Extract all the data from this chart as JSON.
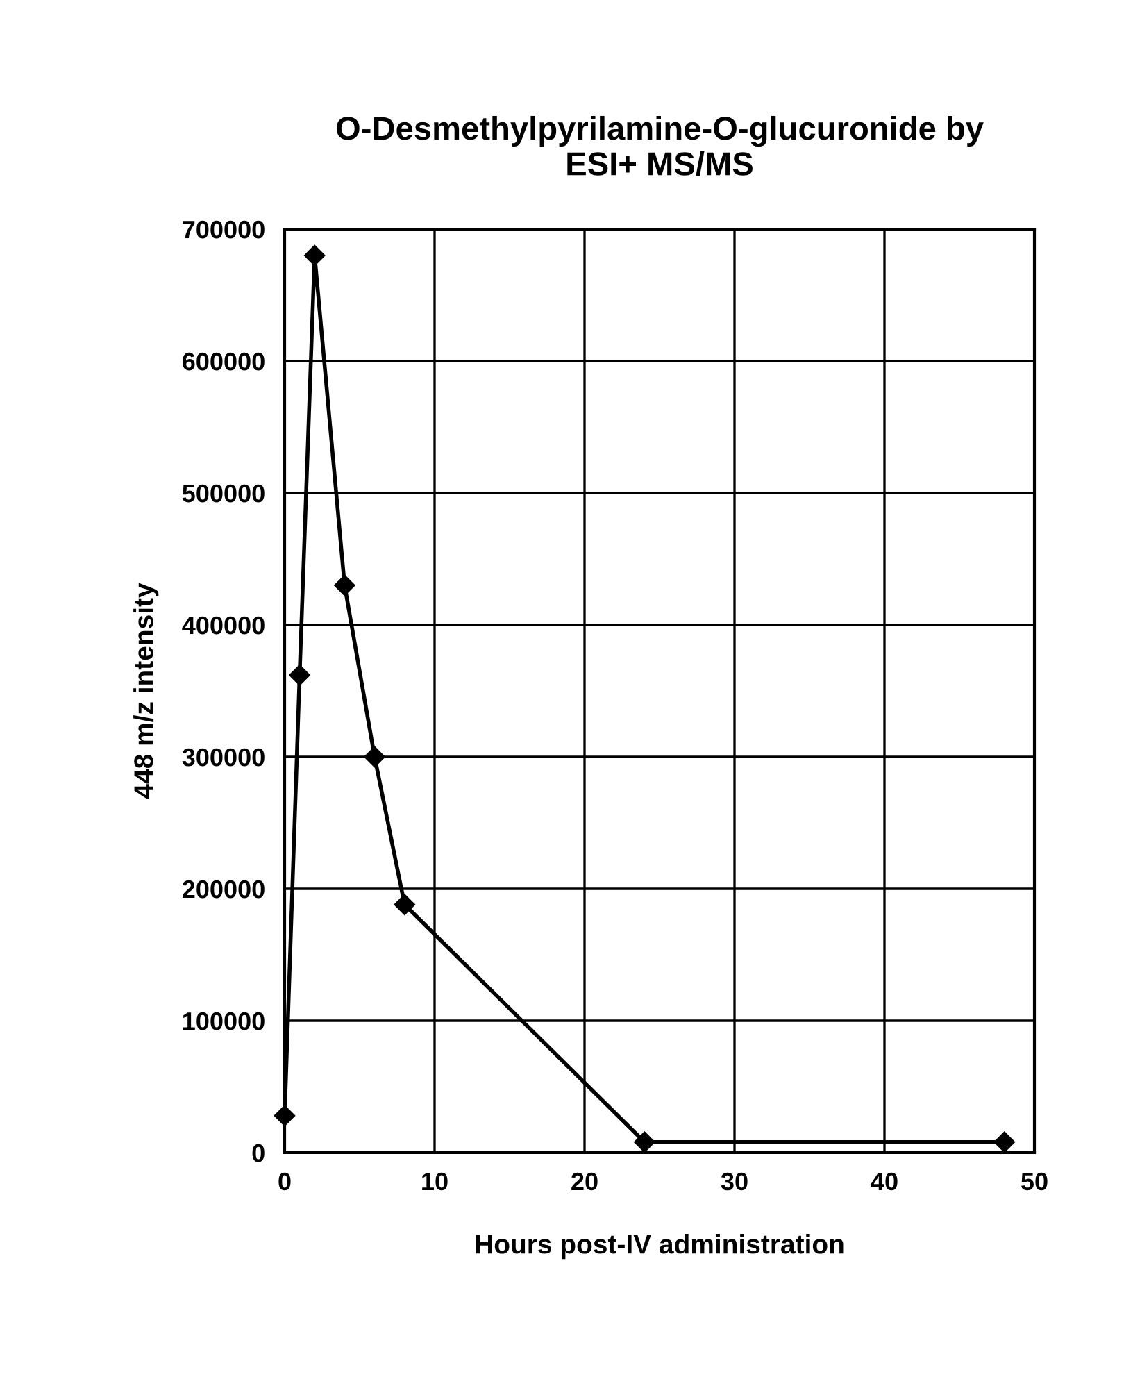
{
  "chart_data": {
    "type": "line",
    "title": "O-Desmethylpyrilamine-O-glucuronide by\nESI+ MS/MS",
    "xlabel": "Hours post-IV administration",
    "ylabel": "448 m/z intensity",
    "x": [
      0,
      1,
      2,
      4,
      6,
      8,
      24,
      48
    ],
    "series": [
      {
        "color": "#000000",
        "values": [
          28000,
          362000,
          680000,
          430000,
          300000,
          188000,
          8000,
          8000
        ]
      }
    ],
    "xlim": [
      0,
      50
    ],
    "xticks": [
      0,
      10,
      20,
      30,
      40,
      50
    ],
    "ylim": [
      0,
      700000
    ],
    "yticks": [
      0,
      100000,
      200000,
      300000,
      400000,
      500000,
      600000,
      700000
    ],
    "grid": true,
    "marker": "diamond",
    "line_style": "solid"
  }
}
